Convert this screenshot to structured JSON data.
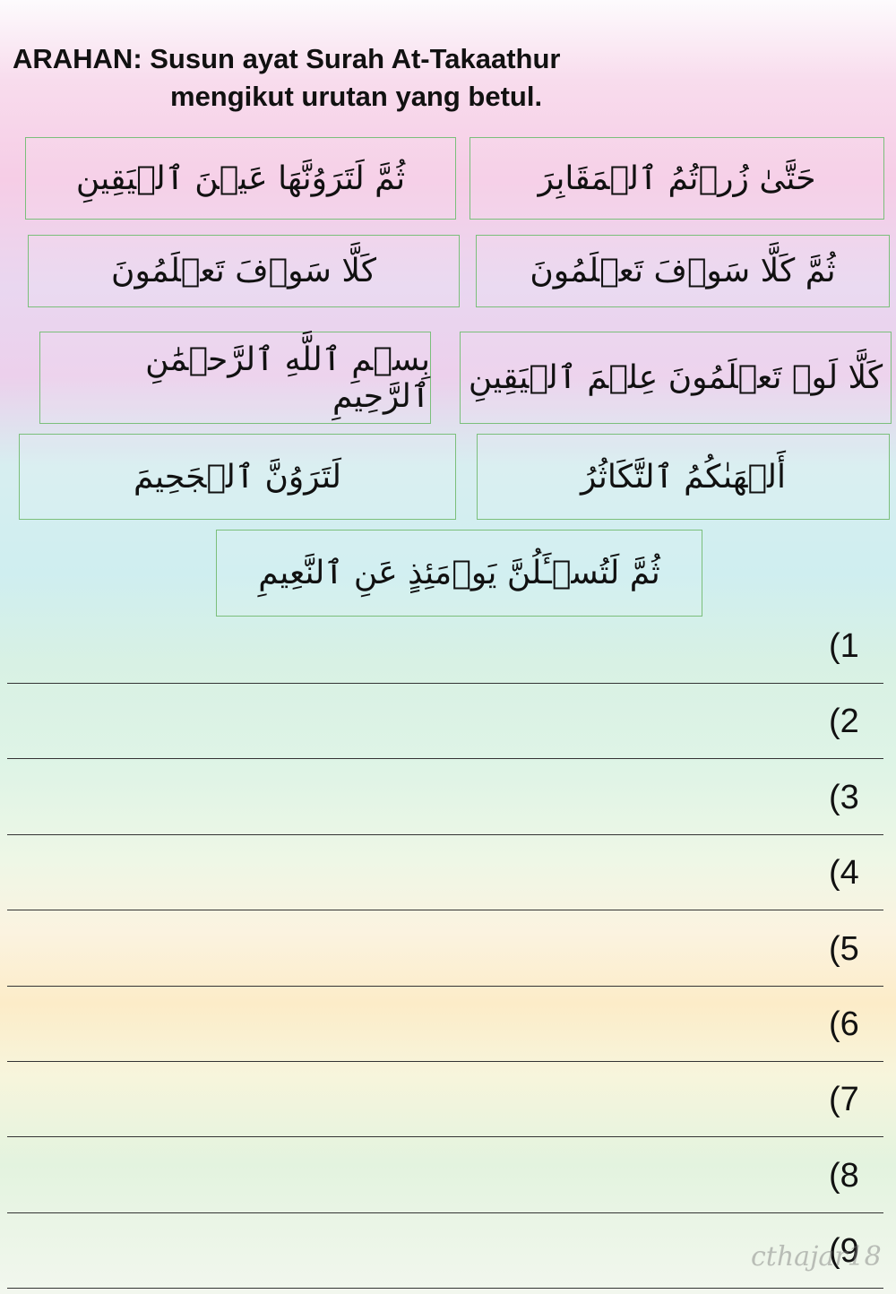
{
  "header": {
    "title_line_1": "ARAHAN: Susun ayat Surah At-Takaathur",
    "title_line_2": "mengikut urutan yang betul."
  },
  "cards": [
    {
      "text": "حَتَّىٰ زُرۡتُمُ ٱلۡمَقَابِرَ"
    },
    {
      "text": "ثُمَّ لَتَرَوُنَّهَا عَيۡنَ ٱلۡيَقِينِ"
    },
    {
      "text": "ثُمَّ كَلَّا سَوۡفَ تَعۡلَمُونَ"
    },
    {
      "text": "كَلَّا سَوۡفَ تَعۡلَمُونَ"
    },
    {
      "text": "كَلَّا لَوۡ تَعۡلَمُونَ عِلۡمَ ٱلۡيَقِينِ"
    },
    {
      "text": "بِسۡمِ ٱللَّهِ ٱلرَّحۡمَٰنِ ٱلرَّحِيمِ"
    },
    {
      "text": "أَلۡهَىٰكُمُ ٱلتَّكَاثُرُ"
    },
    {
      "text": "لَتَرَوُنَّ ٱلۡجَحِيمَ"
    },
    {
      "text": "ثُمَّ لَتُسۡـَٔلُنَّ يَوۡمَئِذٍ عَنِ ٱلنَّعِيمِ"
    }
  ],
  "answer_lines": [
    "(1",
    "(2",
    "(3",
    "(4",
    "(5",
    "(6",
    "(7",
    "(8",
    "(9"
  ],
  "watermark": "cthajar18"
}
